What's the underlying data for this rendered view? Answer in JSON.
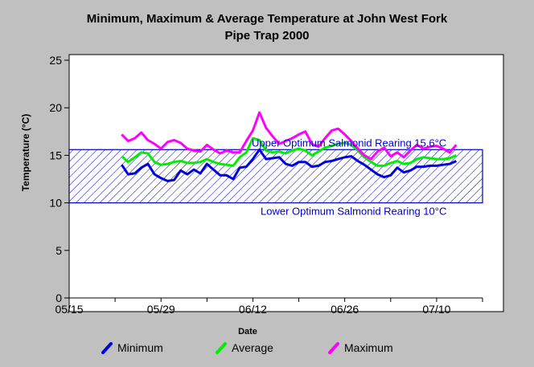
{
  "chart_data": {
    "type": "line",
    "title_line1": "Minimum, Maximum & Average Temperature at John West Fork",
    "title_line2": "Pipe Trap 2000",
    "xlabel": "Date",
    "ylabel": "Temperature (°C)",
    "x_tick_labels": [
      "05/15",
      "05/29",
      "06/12",
      "06/26",
      "07/10"
    ],
    "x_tick_days": [
      0,
      14,
      28,
      42,
      56
    ],
    "xlim_days": [
      0,
      63
    ],
    "ylim": [
      0,
      25
    ],
    "y_ticks": [
      0,
      5,
      10,
      15,
      20,
      25
    ],
    "grid": false,
    "legend_position": "bottom",
    "optimum_band": {
      "lower": 10,
      "upper": 15.6,
      "lower_label": "Lower Optimum Salmonid Rearing 10°C",
      "upper_label": "Upper Optimum Salmonid Rearing 15.6°C",
      "color": "#0000cc"
    },
    "x_days": [
      8,
      9,
      10,
      11,
      12,
      13,
      14,
      15,
      16,
      17,
      18,
      19,
      20,
      21,
      22,
      23,
      24,
      25,
      26,
      27,
      28,
      29,
      30,
      31,
      32,
      33,
      34,
      35,
      36,
      37,
      38,
      39,
      40,
      41,
      42,
      43,
      44,
      45,
      46,
      47,
      48,
      49,
      50,
      51,
      52,
      53,
      54,
      55,
      56,
      57,
      58,
      59
    ],
    "series": [
      {
        "name": "Minimum",
        "color": "#0000dd",
        "values": [
          14.0,
          13.0,
          13.1,
          13.7,
          14.1,
          13.0,
          12.6,
          12.3,
          12.4,
          13.4,
          13.0,
          13.5,
          13.1,
          14.1,
          13.5,
          12.9,
          12.9,
          12.5,
          13.7,
          13.8,
          14.6,
          15.6,
          14.6,
          14.7,
          14.8,
          14.1,
          13.9,
          14.3,
          14.3,
          13.8,
          13.9,
          14.3,
          14.4,
          14.6,
          14.8,
          14.9,
          14.4,
          14.0,
          13.5,
          13.0,
          12.7,
          12.9,
          13.7,
          13.2,
          13.4,
          13.8,
          13.8,
          13.9,
          13.9,
          14.0,
          14.1,
          14.4
        ]
      },
      {
        "name": "Average",
        "color": "#00ee00",
        "values": [
          14.9,
          14.3,
          14.8,
          15.3,
          15.2,
          14.3,
          14.0,
          14.1,
          14.3,
          14.4,
          14.2,
          14.2,
          14.3,
          14.6,
          14.3,
          14.1,
          14.0,
          13.9,
          14.8,
          15.3,
          16.8,
          16.6,
          15.5,
          15.3,
          15.4,
          15.2,
          15.5,
          15.7,
          15.5,
          15.0,
          15.4,
          15.8,
          16.0,
          16.2,
          16.3,
          16.1,
          15.5,
          14.8,
          14.3,
          13.9,
          13.9,
          14.2,
          14.4,
          14.1,
          14.2,
          14.6,
          14.8,
          14.7,
          14.6,
          14.6,
          14.7,
          15.0
        ]
      },
      {
        "name": "Maximum",
        "color": "#ff00ff",
        "values": [
          17.2,
          16.5,
          16.8,
          17.4,
          16.6,
          16.2,
          15.7,
          16.4,
          16.6,
          16.3,
          15.7,
          15.5,
          15.4,
          16.1,
          15.6,
          15.2,
          15.5,
          15.3,
          15.3,
          16.5,
          17.6,
          19.5,
          17.9,
          17.0,
          16.2,
          16.5,
          16.8,
          17.2,
          17.5,
          16.2,
          15.9,
          16.8,
          17.6,
          17.8,
          17.2,
          16.5,
          15.7,
          15.0,
          14.6,
          15.4,
          15.8,
          14.9,
          15.3,
          14.8,
          15.5,
          16.1,
          15.7,
          15.9,
          16.0,
          15.7,
          15.3,
          16.1
        ]
      }
    ]
  }
}
